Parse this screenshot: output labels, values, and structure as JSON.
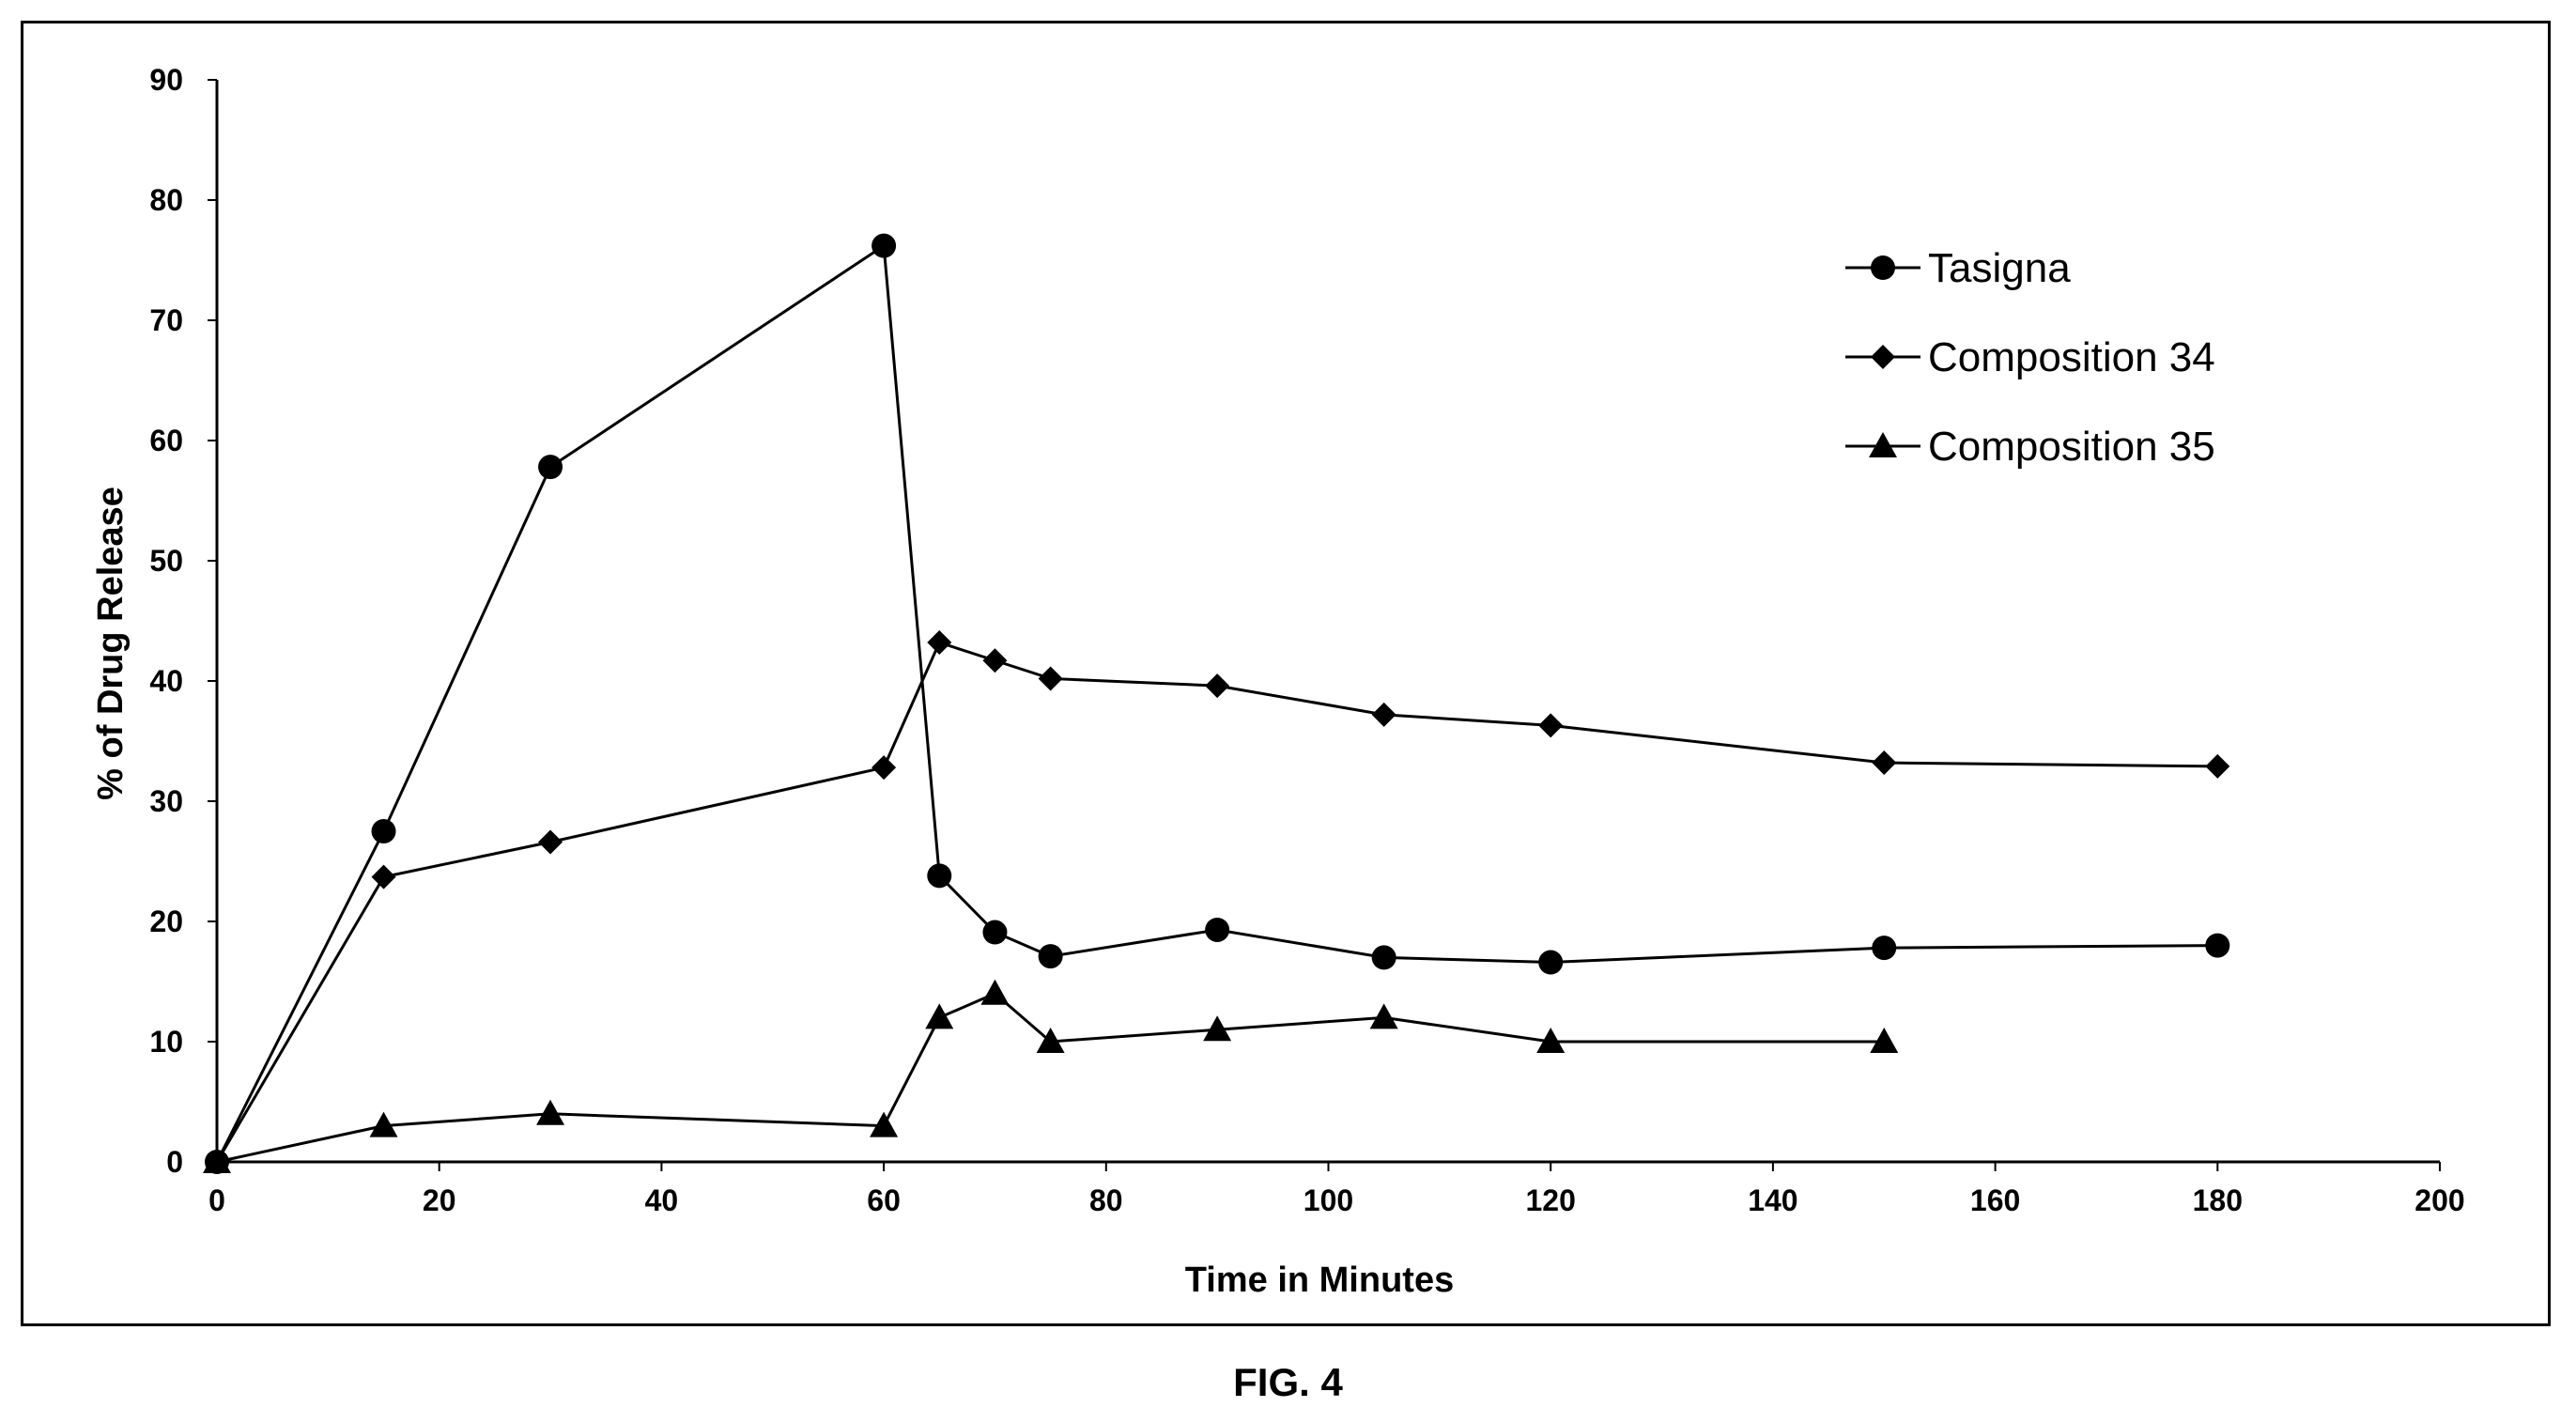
{
  "caption": "FIG. 4",
  "chart_data": {
    "type": "line",
    "title": "",
    "xlabel": "Time in Minutes",
    "ylabel": "% of Drug Release",
    "xlim": [
      0,
      200
    ],
    "ylim": [
      0,
      90
    ],
    "xticks": [
      0,
      20,
      40,
      60,
      80,
      100,
      120,
      140,
      160,
      180,
      200
    ],
    "yticks": [
      0,
      10,
      20,
      30,
      40,
      50,
      60,
      70,
      80,
      90
    ],
    "grid": false,
    "legend_position": "top-right",
    "series": [
      {
        "name": "Tasigna",
        "marker": "circle",
        "x": [
          0,
          15,
          30,
          60,
          65,
          70,
          75,
          90,
          105,
          120,
          150,
          180
        ],
        "y": [
          0,
          27.5,
          57.8,
          76.2,
          23.8,
          19.1,
          17.1,
          19.3,
          17.0,
          16.6,
          17.8,
          18.0
        ]
      },
      {
        "name": "Composition 34",
        "marker": "diamond",
        "x": [
          0,
          15,
          30,
          60,
          65,
          70,
          75,
          90,
          105,
          120,
          150,
          180
        ],
        "y": [
          0,
          23.7,
          26.6,
          32.8,
          43.2,
          41.7,
          40.2,
          39.6,
          37.2,
          36.3,
          33.2,
          32.9
        ]
      },
      {
        "name": "Composition 35",
        "marker": "triangle",
        "x": [
          0,
          15,
          30,
          60,
          65,
          70,
          75,
          90,
          105,
          120,
          150
        ],
        "y": [
          0,
          3.0,
          4.0,
          3.0,
          12.0,
          14.0,
          10.0,
          11.0,
          12.0,
          10.0,
          10.0
        ]
      }
    ]
  }
}
